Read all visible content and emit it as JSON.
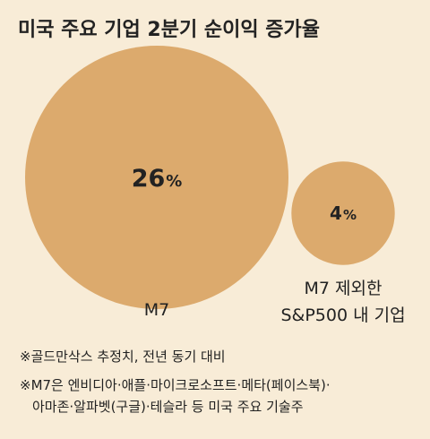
{
  "chart_data": {
    "type": "bubble",
    "title": "미국 주요 기업 2분기 순이익 증가율",
    "unit": "%",
    "series": [
      {
        "category": [
          "M7"
        ],
        "value": 26,
        "label": "26%"
      },
      {
        "category": [
          "M7 제외한",
          "S&P500 내 기업"
        ],
        "value": 4,
        "label": "4%"
      }
    ],
    "notes": [
      "※골드만삭스 추정치, 전년 동기 대비",
      "※M7은 엔비디아·애플·마이크로소프트·메타(페이스북)·",
      "아마존·알파벳(구글)·테슬라 등 미국 주요 기술주"
    ]
  },
  "colors": {
    "background": "#f8ecd7",
    "bubble": "#dcaa6d",
    "text": "#222222"
  }
}
